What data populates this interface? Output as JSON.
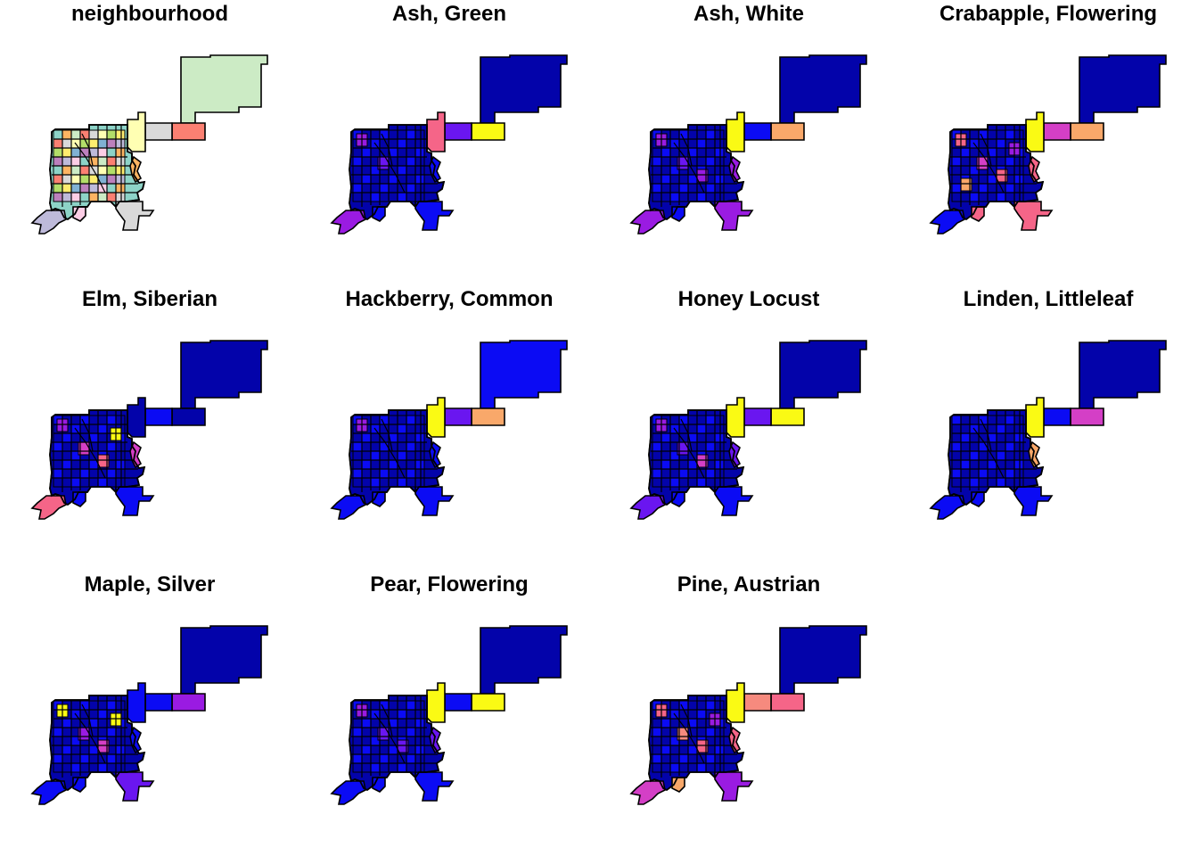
{
  "colors": {
    "outline": "#000000",
    "palette": {
      "navy": "#0303AA",
      "blue": "#0B0BF4",
      "violet": "#6A16F0",
      "purple": "#9A1BE2",
      "magenta": "#D43FC6",
      "pink": "#F56588",
      "salmon": "#F68A7E",
      "orange": "#F9A86A",
      "yellow": "#FAFA14"
    },
    "categorical": [
      "#8DD3C7",
      "#FFFFB3",
      "#BEBADA",
      "#FB8072",
      "#80B1D3",
      "#FDB462",
      "#B3DE69",
      "#FCCDE5",
      "#D9D9D9",
      "#BC80BD",
      "#CCEBC5",
      "#FFED6F"
    ]
  },
  "panels": [
    {
      "title": "neighbourhood",
      "mode": "categorical",
      "fills": {
        "east_big": "#CCEBC5",
        "east_mid": "#FB8072",
        "east_mid_left": "#D9D9D9",
        "north_yellow": "#FFFFB3",
        "south_block": "#D9D9D9",
        "east_side": "#FDB462",
        "sw_tail": "#BEBADA",
        "south_tail": "#FCCDE5"
      }
    },
    {
      "title": "Ash, Green",
      "mode": "sequential",
      "fills": {
        "east_big": "#0303AA",
        "east_mid": "#FAFA14",
        "east_mid_left": "#6A16F0",
        "north_yellow": "#F56588",
        "south_block": "#0B0BF4",
        "east_side": "#0B0BF4",
        "sw_tail": "#9A1BE2",
        "south_tail": "#0B0BF4"
      },
      "highlights": [
        "purple",
        "violet"
      ]
    },
    {
      "title": "Ash, White",
      "mode": "sequential",
      "fills": {
        "east_big": "#0303AA",
        "east_mid": "#F9A86A",
        "east_mid_left": "#0B0BF4",
        "north_yellow": "#FAFA14",
        "south_block": "#9A1BE2",
        "east_side": "#9A1BE2",
        "sw_tail": "#9A1BE2",
        "south_tail": "#0B0BF4"
      },
      "highlights": [
        "purple",
        "violet",
        "purple"
      ]
    },
    {
      "title": "Crabapple, Flowering",
      "mode": "sequential",
      "fills": {
        "east_big": "#0303AA",
        "east_mid": "#F9A86A",
        "east_mid_left": "#D43FC6",
        "north_yellow": "#FAFA14",
        "south_block": "#F56588",
        "east_side": "#F56588",
        "sw_tail": "#0B0BF4",
        "south_tail": "#F56588"
      },
      "highlights": [
        "pink",
        "magenta",
        "pink",
        "purple",
        "orange"
      ]
    },
    {
      "title": "Elm, Siberian",
      "mode": "sequential",
      "fills": {
        "east_big": "#0303AA",
        "east_mid": "#0303AA",
        "east_mid_left": "#0B0BF4",
        "north_yellow": "#0303AA",
        "south_block": "#0B0BF4",
        "east_side": "#D43FC6",
        "sw_tail": "#F56588",
        "south_tail": "#0B0BF4"
      },
      "highlights": [
        "purple",
        "magenta",
        "pink",
        "yellow"
      ]
    },
    {
      "title": "Hackberry, Common",
      "mode": "sequential",
      "fills": {
        "east_big": "#0B0BF4",
        "east_mid": "#F9A86A",
        "east_mid_left": "#6A16F0",
        "north_yellow": "#FAFA14",
        "south_block": "#0B0BF4",
        "east_side": "#0B0BF4",
        "sw_tail": "#0B0BF4",
        "south_tail": "#0B0BF4"
      },
      "highlights": [
        "purple"
      ]
    },
    {
      "title": "Honey Locust",
      "mode": "sequential",
      "fills": {
        "east_big": "#0303AA",
        "east_mid": "#FAFA14",
        "east_mid_left": "#6A16F0",
        "north_yellow": "#FAFA14",
        "south_block": "#0B0BF4",
        "east_side": "#6A16F0",
        "sw_tail": "#6A16F0",
        "south_tail": "#0B0BF4"
      },
      "highlights": [
        "purple",
        "violet",
        "magenta"
      ]
    },
    {
      "title": "Linden, Littleleaf",
      "mode": "sequential",
      "fills": {
        "east_big": "#0303AA",
        "east_mid": "#D43FC6",
        "east_mid_left": "#0B0BF4",
        "north_yellow": "#FAFA14",
        "south_block": "#0B0BF4",
        "east_side": "#F9A86A",
        "sw_tail": "#0B0BF4",
        "south_tail": "#0B0BF4"
      },
      "highlights": []
    },
    {
      "title": "Maple, Silver",
      "mode": "sequential",
      "fills": {
        "east_big": "#0303AA",
        "east_mid": "#9A1BE2",
        "east_mid_left": "#0B0BF4",
        "north_yellow": "#0B0BF4",
        "south_block": "#6A16F0",
        "east_side": "#0B0BF4",
        "sw_tail": "#0B0BF4",
        "south_tail": "#0B0BF4"
      },
      "highlights": [
        "yellow",
        "purple",
        "magenta",
        "yellow"
      ]
    },
    {
      "title": "Pear, Flowering",
      "mode": "sequential",
      "fills": {
        "east_big": "#0303AA",
        "east_mid": "#FAFA14",
        "east_mid_left": "#0B0BF4",
        "north_yellow": "#FAFA14",
        "south_block": "#0B0BF4",
        "east_side": "#6A16F0",
        "sw_tail": "#0B0BF4",
        "south_tail": "#0B0BF4"
      },
      "highlights": [
        "purple",
        "violet",
        "violet"
      ]
    },
    {
      "title": "Pine, Austrian",
      "mode": "sequential",
      "fills": {
        "east_big": "#0303AA",
        "east_mid": "#F56588",
        "east_mid_left": "#F68A7E",
        "north_yellow": "#FAFA14",
        "south_block": "#9A1BE2",
        "east_side": "#F56588",
        "sw_tail": "#D43FC6",
        "south_tail": "#F9A86A"
      },
      "highlights": [
        "pink",
        "salmon",
        "pink",
        "purple"
      ]
    }
  ]
}
